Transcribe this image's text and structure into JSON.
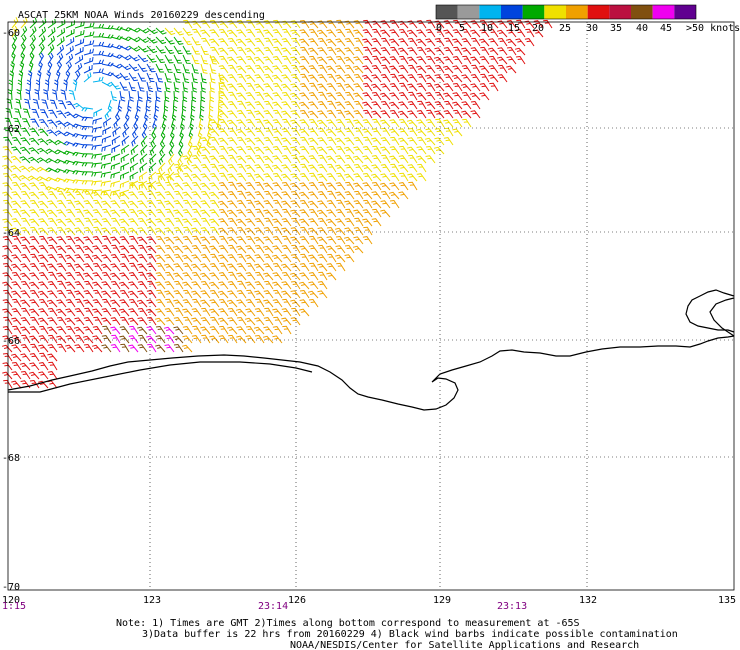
{
  "title": "ASCAT 25KM NOAA Winds 20160229 descending",
  "legend": {
    "labels": [
      "0",
      "5",
      "10",
      "15",
      "20",
      "25",
      "30",
      "35",
      "40",
      "45",
      ">50 knots"
    ],
    "colors": [
      "#555555",
      "#9a9a9a",
      "#00b4f0",
      "#0044dd",
      "#00aa00",
      "#f0e000",
      "#f0a000",
      "#e01010",
      "#bb1040",
      "#805010",
      "#f000f0",
      "#600090"
    ]
  },
  "lat_labels": [
    "-60",
    "-62",
    "-64",
    "-66",
    "-68",
    "-70"
  ],
  "lon_labels": [
    "120",
    "123",
    "126",
    "129",
    "132",
    "135"
  ],
  "times": [
    "1:15",
    "23:14",
    "23:13"
  ],
  "notes": {
    "line1": "Note: 1) Times are GMT 2)Times along bottom correspond to measurement at -65S",
    "line2": "3)Data buffer is 22 hrs from 20160229 4) Black wind barbs indicate possible contamination",
    "line3": "NOAA/NESDIS/Center for Satellite Applications and Research"
  },
  "colors": {
    "grid": "#000000",
    "coast": "#000000",
    "time_label": "#800080"
  }
}
